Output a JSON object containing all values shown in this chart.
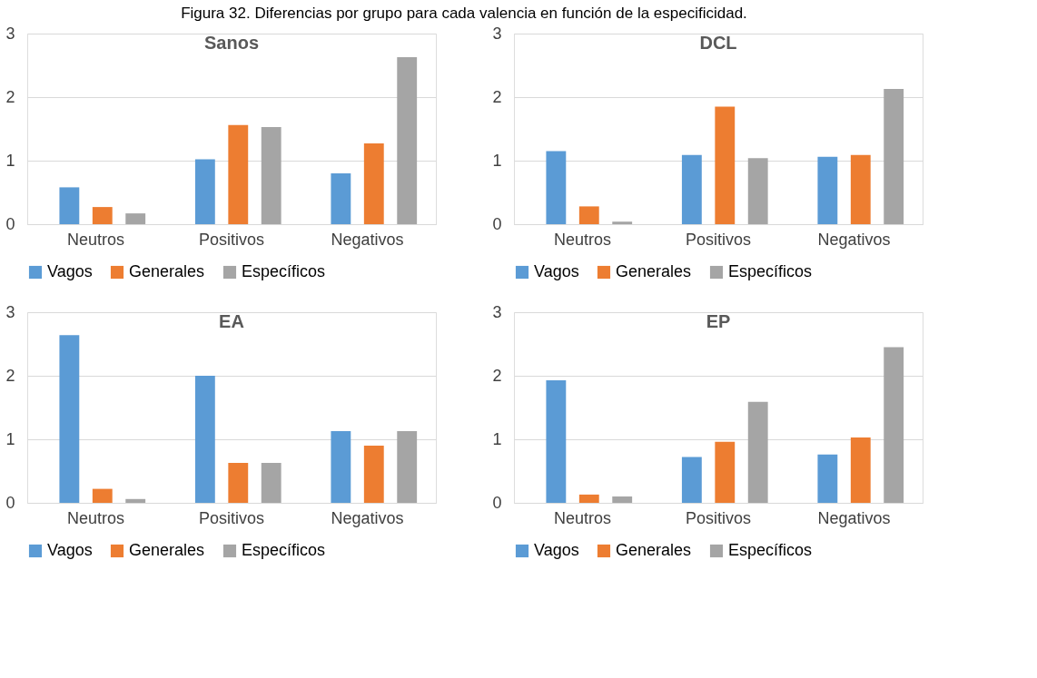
{
  "chart_data": [
    {
      "type": "bar",
      "title": "Sanos",
      "annotations": [
        "Figura 32. Diferencias por grupo para cada valencia en función de la especificidad."
      ],
      "categories": [
        "Neutros",
        "Positivos",
        "Negativos"
      ],
      "series": [
        {
          "name": "Vagos",
          "color": "#5b9bd5",
          "values": [
            0.58,
            1.02,
            0.8
          ]
        },
        {
          "name": "Generales",
          "color": "#ed7d31",
          "values": [
            0.27,
            1.56,
            1.27
          ]
        },
        {
          "name": "Específicos",
          "color": "#a5a5a5",
          "values": [
            0.17,
            1.53,
            2.63
          ]
        }
      ],
      "ylim": [
        0,
        3
      ],
      "yticks": [
        0,
        1,
        2,
        3
      ],
      "grid": "y",
      "legend": "bottom"
    },
    {
      "type": "bar",
      "title": "DCL",
      "categories": [
        "Neutros",
        "Positivos",
        "Negativos"
      ],
      "series": [
        {
          "name": "Vagos",
          "color": "#5b9bd5",
          "values": [
            1.15,
            1.09,
            1.06
          ]
        },
        {
          "name": "Generales",
          "color": "#ed7d31",
          "values": [
            0.28,
            1.85,
            1.09
          ]
        },
        {
          "name": "Específicos",
          "color": "#a5a5a5",
          "values": [
            0.04,
            1.04,
            2.13
          ]
        }
      ],
      "ylim": [
        0,
        3
      ],
      "yticks": [
        0,
        1,
        2,
        3
      ],
      "grid": "y",
      "legend": "bottom"
    },
    {
      "type": "bar",
      "title": "EA",
      "categories": [
        "Neutros",
        "Positivos",
        "Negativos"
      ],
      "series": [
        {
          "name": "Vagos",
          "color": "#5b9bd5",
          "values": [
            2.64,
            2.0,
            1.13
          ]
        },
        {
          "name": "Generales",
          "color": "#ed7d31",
          "values": [
            0.22,
            0.63,
            0.9
          ]
        },
        {
          "name": "Específicos",
          "color": "#a5a5a5",
          "values": [
            0.06,
            0.63,
            1.13
          ]
        }
      ],
      "ylim": [
        0,
        3
      ],
      "yticks": [
        0,
        1,
        2,
        3
      ],
      "grid": "y",
      "legend": "bottom"
    },
    {
      "type": "bar",
      "title": "EP",
      "categories": [
        "Neutros",
        "Positivos",
        "Negativos"
      ],
      "series": [
        {
          "name": "Vagos",
          "color": "#5b9bd5",
          "values": [
            1.93,
            0.72,
            0.76
          ]
        },
        {
          "name": "Generales",
          "color": "#ed7d31",
          "values": [
            0.13,
            0.96,
            1.03
          ]
        },
        {
          "name": "Específicos",
          "color": "#a5a5a5",
          "values": [
            0.1,
            1.59,
            2.45
          ]
        }
      ],
      "ylim": [
        0,
        3
      ],
      "yticks": [
        0,
        1,
        2,
        3
      ],
      "grid": "y",
      "legend": "bottom"
    }
  ]
}
